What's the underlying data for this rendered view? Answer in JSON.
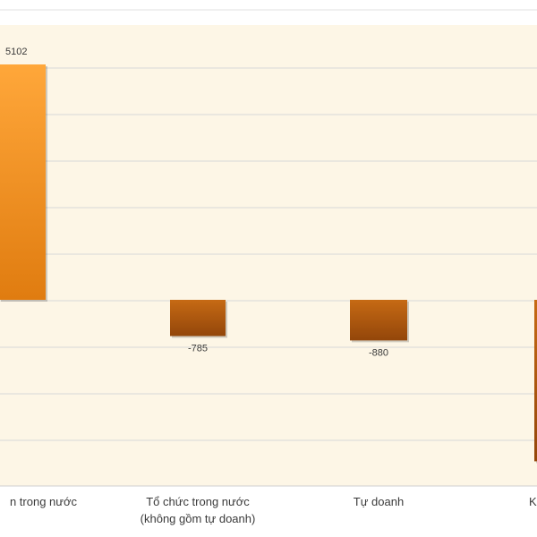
{
  "colors": {
    "plot_background": "#fdf6e6",
    "gridline": "#d8d8d8",
    "positive_bar_top": "#ffa73a",
    "positive_bar_bottom": "#e07c10",
    "negative_bar_top": "#c66a14",
    "negative_bar_bottom": "#93460a",
    "text": "#3a3a3a"
  },
  "chart_data": {
    "type": "bar",
    "title": "",
    "xlabel": "",
    "ylabel": "",
    "grid": true,
    "categories": [
      {
        "lines": [
          "n trong nước"
        ],
        "value": 5102,
        "label": "5102"
      },
      {
        "lines": [
          "Tổ chức trong nước",
          "(không gồm tự doanh)"
        ],
        "value": -785,
        "label": "-785"
      },
      {
        "lines": [
          "Tự doanh"
        ],
        "value": -880,
        "label": "-880"
      },
      {
        "lines": [
          "K"
        ],
        "value": -3500,
        "label": ""
      }
    ],
    "ylim": [
      -4000,
      5500
    ]
  }
}
